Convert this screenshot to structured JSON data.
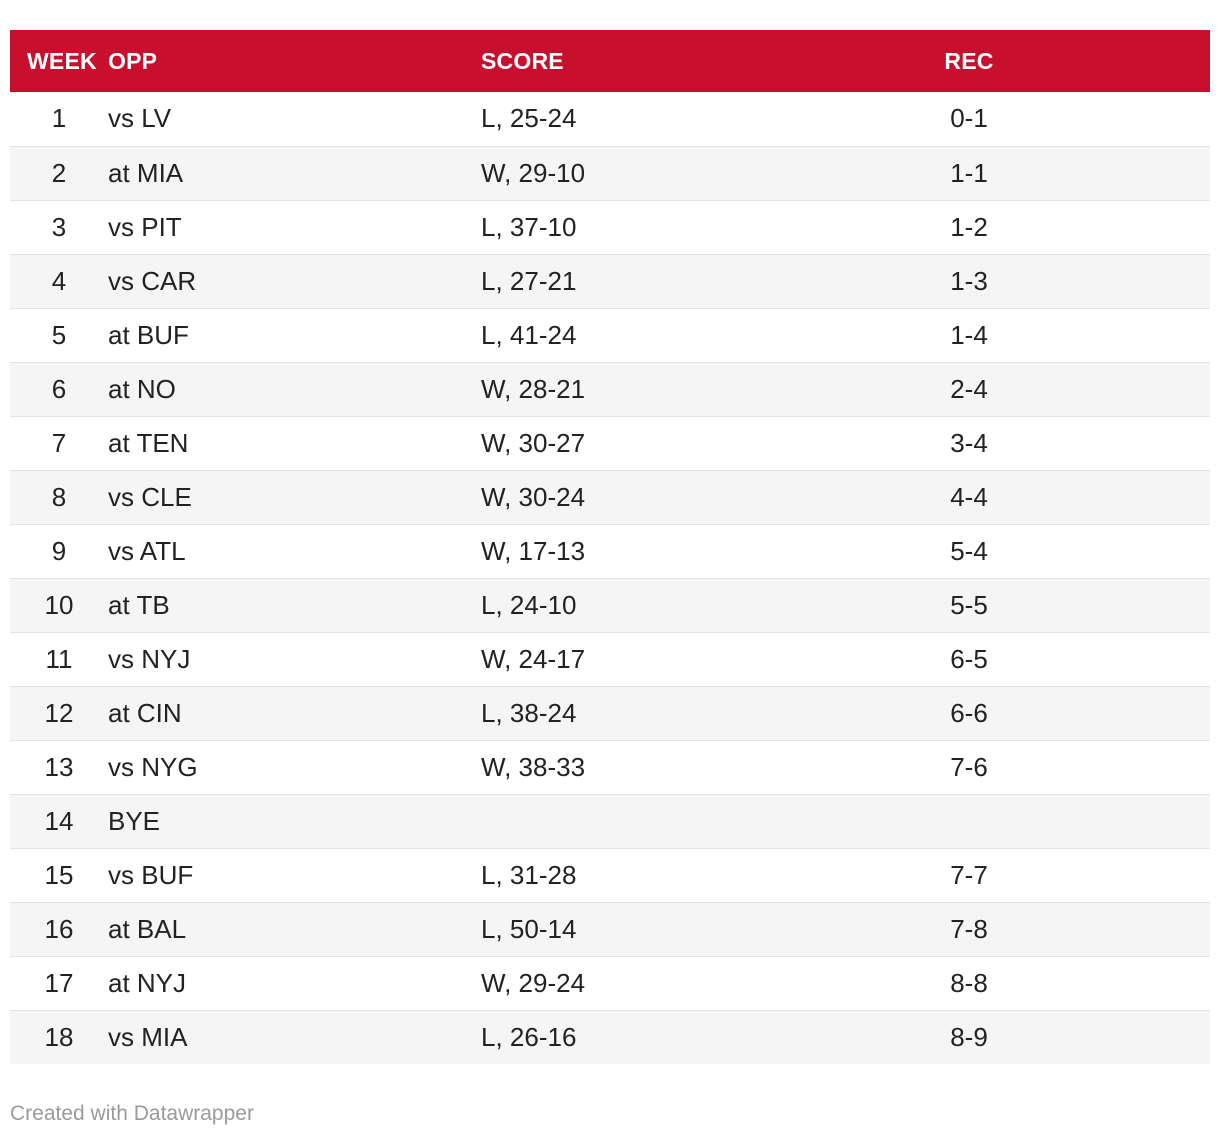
{
  "colors": {
    "header_bg": "#c8102e",
    "header_text": "#ffffff",
    "row_alt_bg": "#f5f5f5",
    "credit_text": "#9a9a9a"
  },
  "chart_data": {
    "type": "table",
    "columns": [
      "WEEK",
      "OPP",
      "SCORE",
      "REC"
    ],
    "rows": [
      {
        "week": "1",
        "opp": "vs LV",
        "score": "L, 25-24",
        "rec": "0-1"
      },
      {
        "week": "2",
        "opp": "at MIA",
        "score": "W, 29-10",
        "rec": "1-1"
      },
      {
        "week": "3",
        "opp": "vs PIT",
        "score": "L, 37-10",
        "rec": "1-2"
      },
      {
        "week": "4",
        "opp": "vs CAR",
        "score": "L, 27-21",
        "rec": "1-3"
      },
      {
        "week": "5",
        "opp": "at BUF",
        "score": "L, 41-24",
        "rec": "1-4"
      },
      {
        "week": "6",
        "opp": "at NO",
        "score": "W, 28-21",
        "rec": "2-4"
      },
      {
        "week": "7",
        "opp": "at TEN",
        "score": "W, 30-27",
        "rec": "3-4"
      },
      {
        "week": "8",
        "opp": "vs CLE",
        "score": "W, 30-24",
        "rec": "4-4"
      },
      {
        "week": "9",
        "opp": "vs ATL",
        "score": "W, 17-13",
        "rec": "5-4"
      },
      {
        "week": "10",
        "opp": "at TB",
        "score": "L, 24-10",
        "rec": "5-5"
      },
      {
        "week": "11",
        "opp": "vs NYJ",
        "score": "W, 24-17",
        "rec": "6-5"
      },
      {
        "week": "12",
        "opp": "at CIN",
        "score": "L, 38-24",
        "rec": "6-6"
      },
      {
        "week": "13",
        "opp": "vs NYG",
        "score": "W, 38-33",
        "rec": "7-6"
      },
      {
        "week": "14",
        "opp": "BYE",
        "score": "",
        "rec": ""
      },
      {
        "week": "15",
        "opp": "vs BUF",
        "score": "L, 31-28",
        "rec": "7-7"
      },
      {
        "week": "16",
        "opp": "at BAL",
        "score": "L, 50-14",
        "rec": "7-8"
      },
      {
        "week": "17",
        "opp": "at NYJ",
        "score": "W, 29-24",
        "rec": "8-8"
      },
      {
        "week": "18",
        "opp": "vs MIA",
        "score": "L, 26-16",
        "rec": "8-9"
      }
    ]
  },
  "footer": {
    "credit": "Created with Datawrapper"
  }
}
